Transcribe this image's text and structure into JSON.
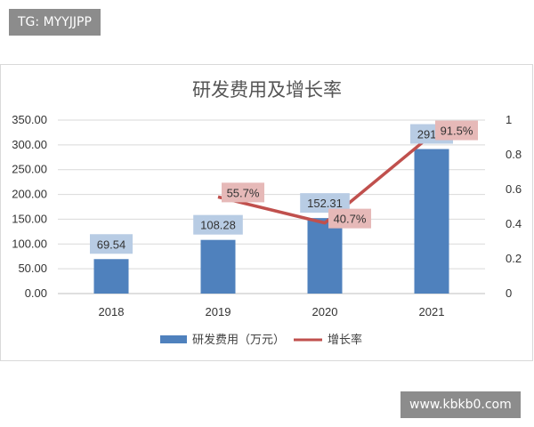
{
  "watermarks": {
    "top": "TG: MYYJJPP",
    "bottom": "www.kbkb0.com"
  },
  "chart_data": {
    "type": "bar",
    "title": "研发费用及增长率",
    "categories": [
      "2018",
      "2019",
      "2020",
      "2021"
    ],
    "series": [
      {
        "name": "研发费用（万元）",
        "type": "bar",
        "axis": "left",
        "values": [
          69.54,
          108.28,
          152.31,
          291.6
        ],
        "labels": [
          "69.54",
          "108.28",
          "152.31",
          "291.6"
        ],
        "color": "#4f81bd"
      },
      {
        "name": "增长率",
        "type": "line",
        "axis": "right",
        "values": [
          null,
          0.557,
          0.407,
          0.915
        ],
        "labels": [
          "",
          "55.7%",
          "40.7%",
          "91.5%"
        ],
        "color": "#c0504d"
      }
    ],
    "y_left": {
      "min": 0,
      "max": 350,
      "ticks": [
        "0.00",
        "50.00",
        "100.00",
        "150.00",
        "200.00",
        "250.00",
        "300.00",
        "350.00"
      ]
    },
    "y_right": {
      "min": 0,
      "max": 1,
      "ticks": [
        "0",
        "0.2",
        "0.4",
        "0.6",
        "0.8",
        "1"
      ]
    },
    "legend_position": "bottom",
    "grid": true
  }
}
